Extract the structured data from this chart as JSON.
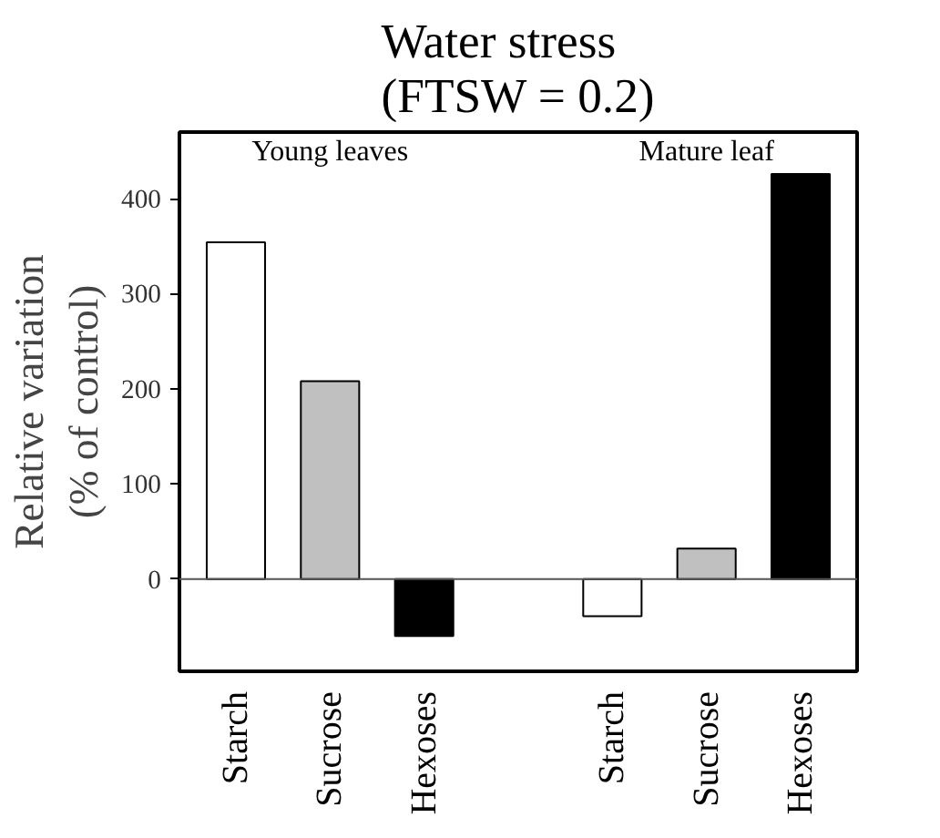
{
  "chart_data": {
    "type": "bar",
    "title": "Water stress\n(FTSW = 0.2)",
    "ylabel": "Relative variation\n(% of control)",
    "categories": [
      "Starch",
      "Sucrose",
      "Hexoses",
      null,
      "Starch",
      "Sucrose",
      "Hexoses"
    ],
    "values": [
      354,
      208,
      -60,
      null,
      -39,
      32,
      426
    ],
    "colors": [
      "#ffffff",
      "#c0c0c0",
      "#000000",
      null,
      "#ffffff",
      "#c0c0c0",
      "#000000"
    ],
    "annotations": [
      "Young leaves",
      "Mature leaf"
    ],
    "ref_lines": [
      {
        "axis": "y",
        "value": 0,
        "color": "#555555"
      }
    ],
    "ylim": [
      -97,
      470
    ],
    "yticks": [
      0,
      100,
      200,
      300,
      400
    ],
    "grid": false
  }
}
